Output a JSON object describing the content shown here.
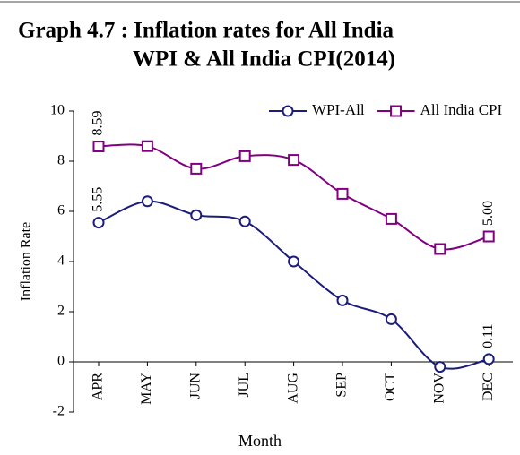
{
  "chart_data": {
    "type": "line",
    "title_lines": [
      "Graph 4.7 : Inflation rates for All  India",
      "WPI & All India CPI(2014)"
    ],
    "x_label": "Month",
    "y_label": "Inflation Rate",
    "categories": [
      "APR",
      "MAY",
      "JUN",
      "JUL",
      "AUG",
      "SEP",
      "OCT",
      "NOV",
      "DEC"
    ],
    "series": [
      {
        "name": "WPI-All",
        "color": "#1c1c7c",
        "marker": "circle",
        "values": [
          5.55,
          6.4,
          5.85,
          5.6,
          4.0,
          2.45,
          1.7,
          -0.2,
          0.11
        ],
        "value_labels": [
          "5.55",
          null,
          null,
          null,
          null,
          null,
          null,
          null,
          "0.11"
        ]
      },
      {
        "name": "All India CPI",
        "color": "#800080",
        "marker": "square",
        "values": [
          8.59,
          8.6,
          7.7,
          8.2,
          8.05,
          6.7,
          5.7,
          4.5,
          5
        ],
        "value_labels": [
          "8.59",
          null,
          null,
          null,
          null,
          null,
          null,
          null,
          "5.00"
        ]
      }
    ],
    "ylim": [
      -2,
      10
    ],
    "yticks": [
      -2,
      0,
      2,
      4,
      6,
      8,
      10
    ],
    "legend": "top-right"
  }
}
